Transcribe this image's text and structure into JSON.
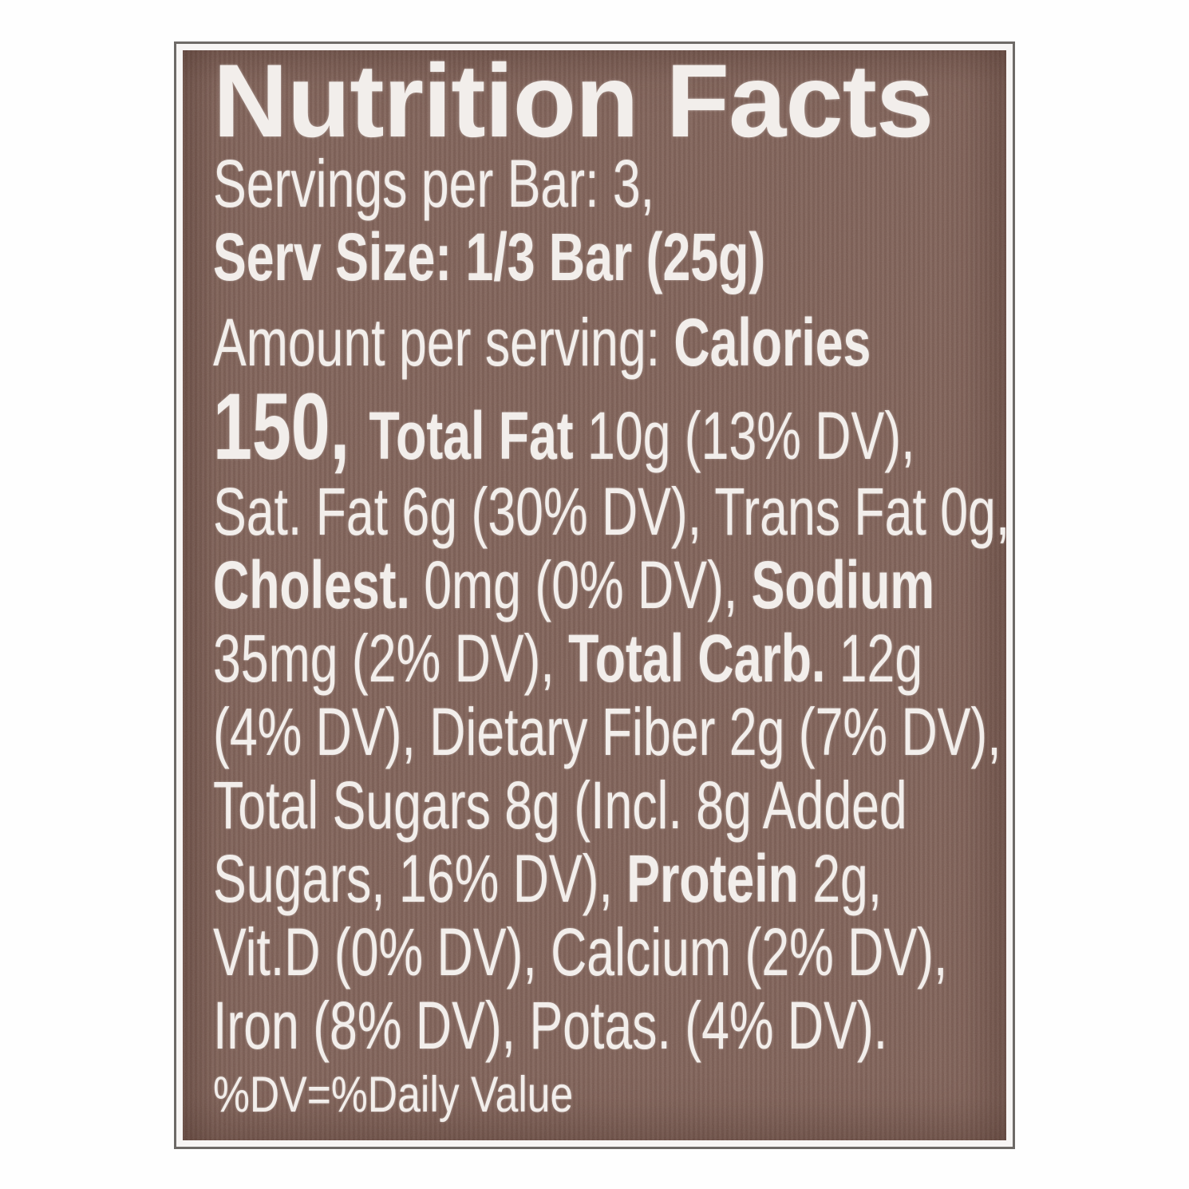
{
  "label": {
    "colors": {
      "background": "#7e5f55",
      "text": "#f2eeeb",
      "frame": "#6e6a67",
      "page": "#fefefe"
    },
    "title": "Nutrition Facts",
    "serving_lines": [
      {
        "segments": [
          {
            "text": "Servings per Bar: 3,",
            "style": "regular"
          }
        ]
      },
      {
        "segments": [
          {
            "text": "Serv Size: 1/3 Bar (25g)",
            "style": "bold"
          }
        ]
      }
    ],
    "body_lines": [
      {
        "segments": [
          {
            "text": "Amount per serving: ",
            "style": "regular"
          },
          {
            "text": "Calories",
            "style": "bold"
          }
        ]
      },
      {
        "segments": [
          {
            "text": "150, ",
            "style": "bold-large"
          },
          {
            "text": "Total Fat ",
            "style": "bold"
          },
          {
            "text": "10g (13% DV),",
            "style": "regular"
          }
        ]
      },
      {
        "segments": [
          {
            "text": "Sat. Fat 6g (30% DV), Trans Fat 0g,",
            "style": "regular"
          }
        ]
      },
      {
        "segments": [
          {
            "text": "Cholest. ",
            "style": "bold"
          },
          {
            "text": "0mg (0% DV), ",
            "style": "regular"
          },
          {
            "text": "Sodium",
            "style": "bold"
          }
        ]
      },
      {
        "segments": [
          {
            "text": "35mg (2% DV), ",
            "style": "regular"
          },
          {
            "text": "Total Carb. ",
            "style": "bold"
          },
          {
            "text": "12g",
            "style": "regular"
          }
        ]
      },
      {
        "segments": [
          {
            "text": "(4% DV), Dietary Fiber 2g (7% DV),",
            "style": "regular"
          }
        ]
      },
      {
        "segments": [
          {
            "text": "Total Sugars 8g (Incl. 8g Added",
            "style": "regular"
          }
        ]
      },
      {
        "segments": [
          {
            "text": "Sugars, 16% DV), ",
            "style": "regular"
          },
          {
            "text": "Protein ",
            "style": "bold"
          },
          {
            "text": "2g,",
            "style": "regular"
          }
        ]
      },
      {
        "segments": [
          {
            "text": "Vit.D (0% DV), Calcium (2% DV),",
            "style": "regular"
          }
        ]
      },
      {
        "segments": [
          {
            "text": "Iron (8% DV), Potas. (4% DV).",
            "style": "regular"
          }
        ]
      }
    ],
    "footnote": "%DV=%Daily Value",
    "nutrition": {
      "servings_per_bar": "3",
      "serving_size": "1/3 Bar (25g)",
      "calories": "150",
      "total_fat": "10g (13% DV)",
      "sat_fat": "6g (30% DV)",
      "trans_fat": "0g",
      "cholesterol": "0mg (0% DV)",
      "sodium": "35mg (2% DV)",
      "total_carb": "12g (4% DV)",
      "dietary_fiber": "2g (7% DV)",
      "total_sugars": "8g",
      "added_sugars": "8g (16% DV)",
      "protein": "2g",
      "vitamin_d": "0% DV",
      "calcium": "2% DV",
      "iron": "8% DV",
      "potassium": "4% DV"
    }
  }
}
